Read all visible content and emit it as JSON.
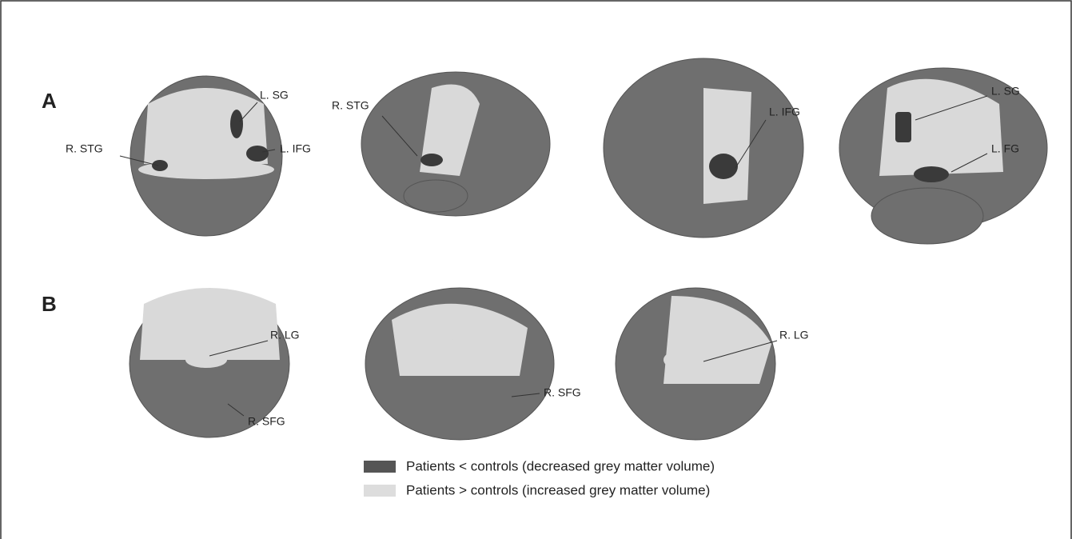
{
  "panels": [
    {
      "label": "A",
      "annotations": [
        "L. SG",
        "R. STG",
        "L. IFG",
        "R. STG",
        "L. IFG",
        "L. SG",
        "L. FG"
      ]
    },
    {
      "label": "B",
      "annotations": [
        "R. LG",
        "R. SFG",
        "R. SFG",
        "R. LG"
      ]
    }
  ],
  "legend": [
    {
      "label": "Patients < controls (decreased grey matter volume)"
    },
    {
      "label": "Patients > controls (increased grey matter volume)"
    }
  ]
}
